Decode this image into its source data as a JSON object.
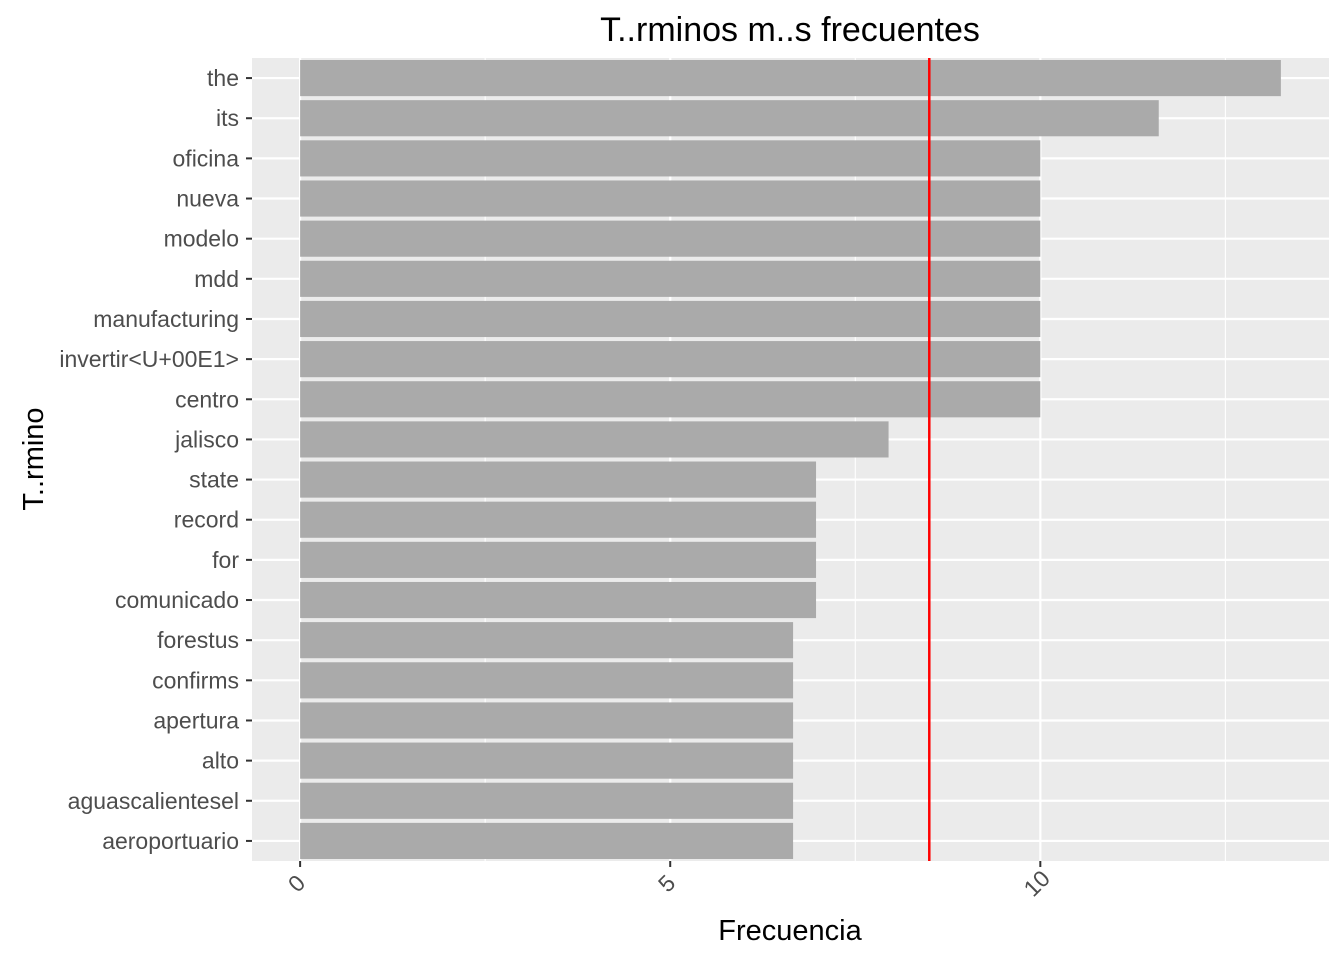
{
  "chart_data": {
    "type": "bar",
    "orientation": "horizontal",
    "title": "T..rminos m..s frecuentes",
    "xlabel": "Frecuencia",
    "ylabel": "T..rmino",
    "categories": [
      "the",
      "its",
      "oficina",
      "nueva",
      "modelo",
      "mdd",
      "manufacturing",
      "invertir<U+00E1>",
      "centro",
      "jalisco",
      "state",
      "record",
      "for",
      "comunicado",
      "forestus",
      "confirms",
      "apertura",
      "alto",
      "aguascalientesel",
      "aeroportuario"
    ],
    "values": [
      13.25,
      11.6,
      10,
      10,
      10,
      10,
      10,
      10,
      10,
      7.95,
      6.97,
      6.97,
      6.97,
      6.97,
      6.66,
      6.66,
      6.66,
      6.66,
      6.66,
      6.66
    ],
    "xlim": [
      -0.65,
      13.9
    ],
    "xticks": [
      "0",
      "5",
      "10"
    ],
    "reference_line": {
      "x": 8.5,
      "color": "#ff0000"
    },
    "grid": true,
    "colors": {
      "bar": "#aaaaaa",
      "panel": "#ebebeb",
      "grid": "#ffffff",
      "reference": "#ff0000"
    }
  }
}
